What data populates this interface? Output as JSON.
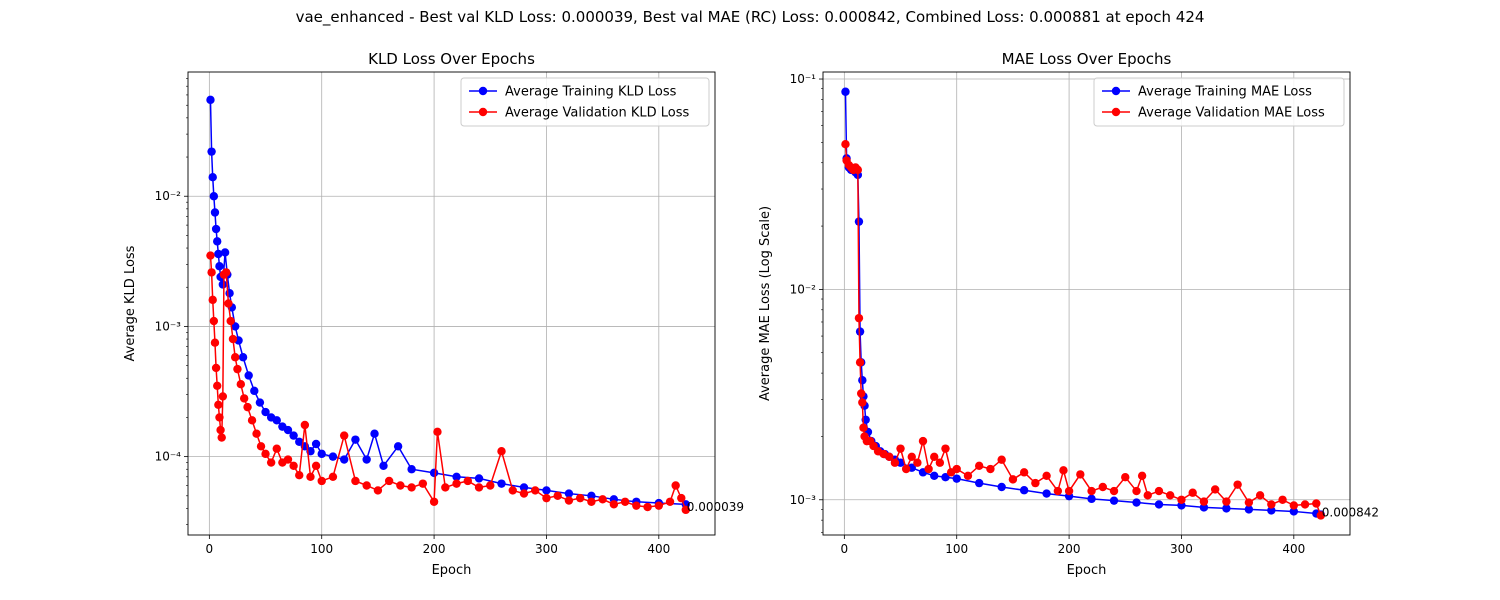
{
  "figure": {
    "suptitle": "vae_enhanced - Best val KLD Loss: 0.000039, Best val MAE (RC) Loss: 0.000842, Combined Loss: 0.000881 at epoch 424"
  },
  "colors": {
    "train": "#0000ff",
    "val": "#ff0000",
    "grid": "#b0b0b0"
  },
  "chart_data": [
    {
      "type": "line",
      "title": "KLD Loss Over Epochs",
      "xlabel": "Epoch",
      "ylabel": "Average KLD Loss",
      "yscale": "log",
      "xlim": [
        -19,
        450
      ],
      "ylim": [
        2.5e-05,
        0.09
      ],
      "xticks": [
        0,
        100,
        200,
        300,
        400
      ],
      "xtick_labels": [
        "0",
        "100",
        "200",
        "300",
        "400"
      ],
      "yticks": [
        0.0001,
        0.001,
        0.01
      ],
      "ytick_labels": [
        "10⁻⁴",
        "10⁻³",
        "10⁻²"
      ],
      "grid": true,
      "legend": "upper right",
      "final_annotation": "0.000039",
      "series": [
        {
          "name": "Average Training KLD Loss",
          "points": [
            [
              1,
              0.055
            ],
            [
              2,
              0.022
            ],
            [
              3,
              0.014
            ],
            [
              4,
              0.01
            ],
            [
              5,
              0.0075
            ],
            [
              6,
              0.0056
            ],
            [
              7,
              0.0045
            ],
            [
              8,
              0.0036
            ],
            [
              9,
              0.0029
            ],
            [
              10,
              0.0024
            ],
            [
              12,
              0.0021
            ],
            [
              14,
              0.0037
            ],
            [
              16,
              0.0025
            ],
            [
              18,
              0.0018
            ],
            [
              20,
              0.0014
            ],
            [
              23,
              0.001
            ],
            [
              26,
              0.00078
            ],
            [
              30,
              0.00058
            ],
            [
              35,
              0.00042
            ],
            [
              40,
              0.00032
            ],
            [
              45,
              0.00026
            ],
            [
              50,
              0.00022
            ],
            [
              55,
              0.0002
            ],
            [
              60,
              0.00019
            ],
            [
              65,
              0.00017
            ],
            [
              70,
              0.00016
            ],
            [
              75,
              0.000145
            ],
            [
              80,
              0.00013
            ],
            [
              85,
              0.00012
            ],
            [
              90,
              0.00011
            ],
            [
              95,
              0.000125
            ],
            [
              100,
              0.000105
            ],
            [
              110,
              0.0001
            ],
            [
              120,
              9.5e-05
            ],
            [
              130,
              0.000135
            ],
            [
              140,
              9.5e-05
            ],
            [
              147,
              0.00015
            ],
            [
              155,
              8.5e-05
            ],
            [
              168,
              0.00012
            ],
            [
              180,
              8e-05
            ],
            [
              200,
              7.5e-05
            ],
            [
              220,
              7e-05
            ],
            [
              240,
              6.8e-05
            ],
            [
              260,
              6.2e-05
            ],
            [
              280,
              5.8e-05
            ],
            [
              300,
              5.5e-05
            ],
            [
              320,
              5.2e-05
            ],
            [
              340,
              5e-05
            ],
            [
              360,
              4.7e-05
            ],
            [
              380,
              4.5e-05
            ],
            [
              400,
              4.4e-05
            ],
            [
              424,
              4.3e-05
            ]
          ]
        },
        {
          "name": "Average Validation KLD Loss",
          "points": [
            [
              1,
              0.0035
            ],
            [
              2,
              0.0026
            ],
            [
              3,
              0.0016
            ],
            [
              4,
              0.0011
            ],
            [
              5,
              0.00075
            ],
            [
              6,
              0.00048
            ],
            [
              7,
              0.00035
            ],
            [
              8,
              0.00025
            ],
            [
              9,
              0.0002
            ],
            [
              10,
              0.00016
            ],
            [
              11,
              0.00014
            ],
            [
              12,
              0.00029
            ],
            [
              13,
              0.0025
            ],
            [
              15,
              0.0026
            ],
            [
              17,
              0.0015
            ],
            [
              19,
              0.0011
            ],
            [
              21,
              0.0008
            ],
            [
              23,
              0.00058
            ],
            [
              25,
              0.00047
            ],
            [
              28,
              0.00036
            ],
            [
              31,
              0.00028
            ],
            [
              34,
              0.00024
            ],
            [
              38,
              0.00019
            ],
            [
              42,
              0.00015
            ],
            [
              46,
              0.00012
            ],
            [
              50,
              0.000105
            ],
            [
              55,
              9e-05
            ],
            [
              60,
              0.000115
            ],
            [
              65,
              9e-05
            ],
            [
              70,
              9.5e-05
            ],
            [
              75,
              8.5e-05
            ],
            [
              80,
              7.2e-05
            ],
            [
              85,
              0.000175
            ],
            [
              90,
              7e-05
            ],
            [
              95,
              8.5e-05
            ],
            [
              100,
              6.5e-05
            ],
            [
              110,
              7e-05
            ],
            [
              120,
              0.000145
            ],
            [
              130,
              6.5e-05
            ],
            [
              140,
              6e-05
            ],
            [
              150,
              5.5e-05
            ],
            [
              160,
              6.5e-05
            ],
            [
              170,
              6e-05
            ],
            [
              180,
              5.8e-05
            ],
            [
              190,
              6.2e-05
            ],
            [
              200,
              4.5e-05
            ],
            [
              203,
              0.000155
            ],
            [
              210,
              5.8e-05
            ],
            [
              220,
              6.2e-05
            ],
            [
              230,
              6.5e-05
            ],
            [
              240,
              5.8e-05
            ],
            [
              250,
              6e-05
            ],
            [
              260,
              0.00011
            ],
            [
              270,
              5.5e-05
            ],
            [
              280,
              5.2e-05
            ],
            [
              290,
              5.5e-05
            ],
            [
              300,
              4.8e-05
            ],
            [
              310,
              5e-05
            ],
            [
              320,
              4.6e-05
            ],
            [
              330,
              4.8e-05
            ],
            [
              340,
              4.5e-05
            ],
            [
              350,
              4.7e-05
            ],
            [
              360,
              4.3e-05
            ],
            [
              370,
              4.5e-05
            ],
            [
              380,
              4.2e-05
            ],
            [
              390,
              4.1e-05
            ],
            [
              400,
              4.2e-05
            ],
            [
              410,
              4.5e-05
            ],
            [
              415,
              6e-05
            ],
            [
              420,
              4.8e-05
            ],
            [
              424,
              3.9e-05
            ]
          ]
        }
      ]
    },
    {
      "type": "line",
      "title": "MAE Loss Over Epochs",
      "xlabel": "Epoch",
      "ylabel": "Average MAE Loss (Log Scale)",
      "yscale": "log",
      "xlim": [
        -19,
        450
      ],
      "ylim": [
        0.00068,
        0.108
      ],
      "xticks": [
        0,
        100,
        200,
        300,
        400
      ],
      "xtick_labels": [
        "0",
        "100",
        "200",
        "300",
        "400"
      ],
      "yticks": [
        0.001,
        0.01,
        0.1
      ],
      "ytick_labels": [
        "10⁻³",
        "10⁻²",
        "10⁻¹"
      ],
      "grid": true,
      "legend": "upper right",
      "final_annotation": "0.000842",
      "series": [
        {
          "name": "Average Training MAE Loss",
          "points": [
            [
              1,
              0.087
            ],
            [
              2,
              0.042
            ],
            [
              4,
              0.038
            ],
            [
              6,
              0.037
            ],
            [
              8,
              0.037
            ],
            [
              10,
              0.036
            ],
            [
              12,
              0.035
            ],
            [
              13,
              0.021
            ],
            [
              14,
              0.0063
            ],
            [
              15,
              0.0045
            ],
            [
              16,
              0.0037
            ],
            [
              17,
              0.0031
            ],
            [
              18,
              0.0028
            ],
            [
              19,
              0.0024
            ],
            [
              21,
              0.0021
            ],
            [
              24,
              0.0019
            ],
            [
              28,
              0.0018
            ],
            [
              32,
              0.0017
            ],
            [
              36,
              0.00165
            ],
            [
              40,
              0.0016
            ],
            [
              45,
              0.00155
            ],
            [
              50,
              0.0015
            ],
            [
              60,
              0.00142
            ],
            [
              70,
              0.00135
            ],
            [
              80,
              0.0013
            ],
            [
              90,
              0.00128
            ],
            [
              100,
              0.00126
            ],
            [
              120,
              0.0012
            ],
            [
              140,
              0.00115
            ],
            [
              160,
              0.00111
            ],
            [
              180,
              0.00107
            ],
            [
              200,
              0.00104
            ],
            [
              220,
              0.00101
            ],
            [
              240,
              0.00099
            ],
            [
              260,
              0.00097
            ],
            [
              280,
              0.00095
            ],
            [
              300,
              0.00094
            ],
            [
              320,
              0.00092
            ],
            [
              340,
              0.00091
            ],
            [
              360,
              0.0009
            ],
            [
              380,
              0.00089
            ],
            [
              400,
              0.00088
            ],
            [
              420,
              0.00086
            ],
            [
              424,
              0.00085
            ]
          ]
        },
        {
          "name": "Average Validation MAE Loss",
          "points": [
            [
              1,
              0.049
            ],
            [
              2,
              0.041
            ],
            [
              4,
              0.039
            ],
            [
              6,
              0.038
            ],
            [
              8,
              0.037
            ],
            [
              10,
              0.038
            ],
            [
              12,
              0.037
            ],
            [
              13,
              0.0073
            ],
            [
              14,
              0.0045
            ],
            [
              15,
              0.0032
            ],
            [
              16,
              0.0029
            ],
            [
              17,
              0.0022
            ],
            [
              18,
              0.002
            ],
            [
              20,
              0.0019
            ],
            [
              23,
              0.0019
            ],
            [
              26,
              0.0018
            ],
            [
              30,
              0.0017
            ],
            [
              35,
              0.00165
            ],
            [
              40,
              0.0016
            ],
            [
              45,
              0.0015
            ],
            [
              50,
              0.00175
            ],
            [
              55,
              0.0014
            ],
            [
              60,
              0.0016
            ],
            [
              65,
              0.0015
            ],
            [
              70,
              0.0019
            ],
            [
              75,
              0.0014
            ],
            [
              80,
              0.0016
            ],
            [
              85,
              0.0015
            ],
            [
              90,
              0.00175
            ],
            [
              95,
              0.00135
            ],
            [
              100,
              0.0014
            ],
            [
              110,
              0.0013
            ],
            [
              120,
              0.00145
            ],
            [
              130,
              0.0014
            ],
            [
              140,
              0.00155
            ],
            [
              150,
              0.00125
            ],
            [
              160,
              0.00135
            ],
            [
              170,
              0.0012
            ],
            [
              180,
              0.0013
            ],
            [
              190,
              0.0011
            ],
            [
              195,
              0.00138
            ],
            [
              200,
              0.0011
            ],
            [
              210,
              0.00132
            ],
            [
              220,
              0.0011
            ],
            [
              230,
              0.00115
            ],
            [
              240,
              0.0011
            ],
            [
              250,
              0.00128
            ],
            [
              260,
              0.0011
            ],
            [
              265,
              0.0013
            ],
            [
              270,
              0.00105
            ],
            [
              280,
              0.0011
            ],
            [
              290,
              0.00105
            ],
            [
              300,
              0.001
            ],
            [
              310,
              0.00108
            ],
            [
              320,
              0.00098
            ],
            [
              330,
              0.00112
            ],
            [
              340,
              0.00098
            ],
            [
              350,
              0.00118
            ],
            [
              360,
              0.00097
            ],
            [
              370,
              0.00105
            ],
            [
              380,
              0.00095
            ],
            [
              390,
              0.001
            ],
            [
              400,
              0.00094
            ],
            [
              410,
              0.00095
            ],
            [
              420,
              0.00096
            ],
            [
              424,
              0.000842
            ]
          ]
        }
      ]
    }
  ]
}
